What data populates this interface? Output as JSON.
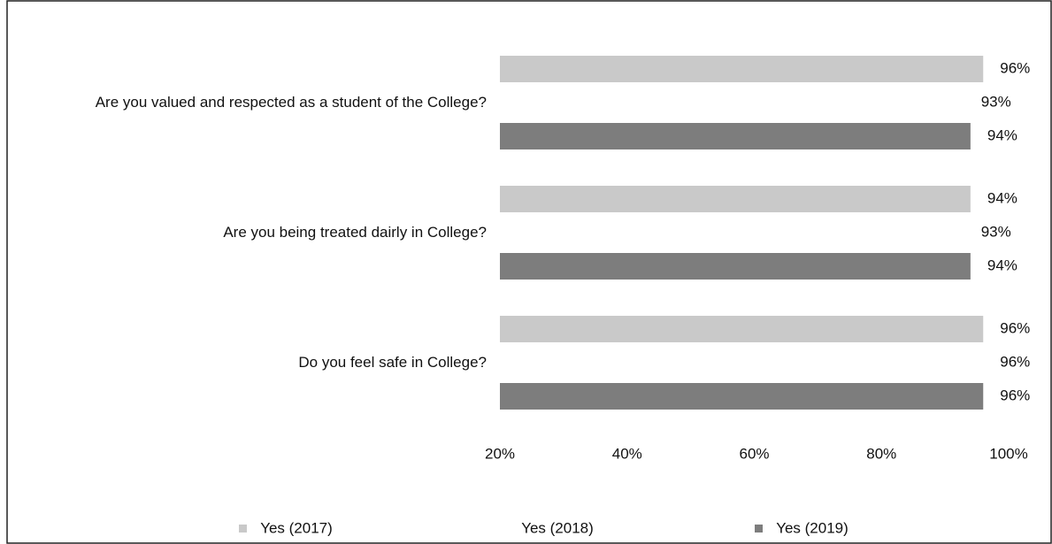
{
  "chart_data": {
    "type": "hbar",
    "categories": [
      "Are you valued and respected as a student of the College?",
      "Are you being treated dairly in College?",
      "Do you feel safe in College?"
    ],
    "series": [
      {
        "name": "Yes (2017)",
        "color": "#c9c9c9",
        "values": [
          96,
          94,
          96
        ],
        "value_labels": [
          "96%",
          "94%",
          "96%"
        ]
      },
      {
        "name": "Yes (2018)",
        "color": "#ffffff",
        "values": [
          93,
          93,
          96
        ],
        "value_labels": [
          "93%",
          "93%",
          "96%"
        ]
      },
      {
        "name": "Yes (2019)",
        "color": "#7d7d7d",
        "values": [
          94,
          94,
          96
        ],
        "value_labels": [
          "94%",
          "94%",
          "96%"
        ]
      }
    ],
    "xlim": [
      20,
      100
    ],
    "xticks": [
      {
        "value": 20,
        "label": "20%"
      },
      {
        "value": 40,
        "label": "40%"
      },
      {
        "value": 60,
        "label": "60%"
      },
      {
        "value": 80,
        "label": "80%"
      },
      {
        "value": 100,
        "label": "100%"
      }
    ],
    "grid": false,
    "legend": "bottom"
  }
}
